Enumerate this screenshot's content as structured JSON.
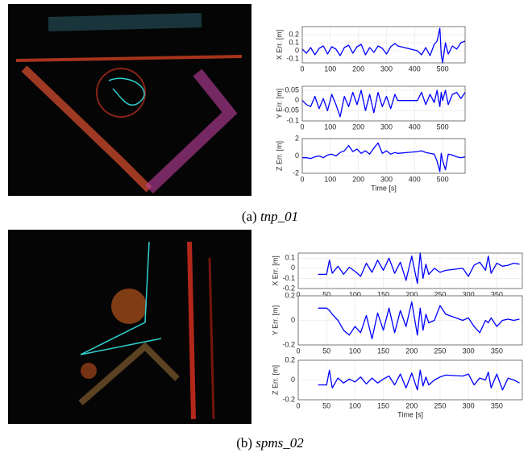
{
  "panels": [
    {
      "caption": {
        "label": "(a)",
        "name": "tnp_01"
      },
      "charts": [
        {
          "type": "line",
          "ylabel": "X Err. [m]",
          "color": "#0000ff",
          "grid": true,
          "xlim": [
            0,
            580
          ],
          "xticks": [
            0,
            100,
            200,
            300,
            400,
            500
          ],
          "ylim": [
            -0.15,
            0.3
          ],
          "yticks": [
            -0.1,
            0,
            0.1,
            0.2
          ],
          "x": [
            0,
            15,
            30,
            45,
            60,
            75,
            90,
            105,
            120,
            135,
            150,
            165,
            180,
            195,
            210,
            225,
            240,
            255,
            270,
            285,
            300,
            315,
            330,
            340,
            410,
            425,
            440,
            455,
            470,
            480,
            490,
            495,
            500,
            510,
            520,
            535,
            550,
            565,
            580
          ],
          "values": [
            0.02,
            -0.03,
            0.04,
            -0.05,
            0.03,
            0.06,
            -0.04,
            0.05,
            0.02,
            -0.06,
            0.04,
            0.07,
            -0.03,
            0.05,
            0.08,
            -0.05,
            0.04,
            -0.02,
            0.06,
            0.03,
            -0.04,
            0.05,
            0.09,
            0.06,
            0.0,
            -0.05,
            0.04,
            -0.06,
            0.08,
            0.12,
            0.28,
            -0.05,
            -0.15,
            0.1,
            -0.04,
            0.06,
            0.02,
            0.1,
            0.12
          ]
        },
        {
          "type": "line",
          "ylabel": "Y Err. [m]",
          "color": "#0000ff",
          "grid": true,
          "xlim": [
            0,
            580
          ],
          "xticks": [
            0,
            100,
            200,
            300,
            400,
            500
          ],
          "ylim": [
            -0.1,
            0.07
          ],
          "yticks": [
            -0.1,
            -0.05,
            0,
            0.05
          ],
          "x": [
            0,
            15,
            30,
            45,
            60,
            75,
            90,
            105,
            120,
            135,
            150,
            165,
            180,
            195,
            210,
            225,
            240,
            255,
            270,
            285,
            300,
            315,
            330,
            340,
            410,
            425,
            440,
            455,
            470,
            480,
            490,
            495,
            500,
            510,
            520,
            535,
            550,
            565,
            580
          ],
          "values": [
            0,
            -0.02,
            -0.03,
            0.02,
            -0.04,
            0.01,
            -0.05,
            0.03,
            -0.02,
            -0.08,
            0.02,
            -0.03,
            0.04,
            -0.02,
            0.05,
            -0.05,
            0.03,
            -0.06,
            0.04,
            -0.03,
            0.02,
            -0.04,
            0.03,
            0.0,
            0.0,
            0.04,
            -0.02,
            0.03,
            -0.01,
            0.05,
            -0.03,
            0.04,
            0.0,
            0.05,
            -0.02,
            0.03,
            0.04,
            0.01,
            0.04
          ]
        },
        {
          "type": "line",
          "ylabel": "Z Err. [m]",
          "xlabel": "Time [s]",
          "color": "#0000ff",
          "grid": true,
          "xlim": [
            0,
            580
          ],
          "xticks": [
            0,
            100,
            200,
            300,
            400,
            500
          ],
          "ylim": [
            -2,
            2
          ],
          "yticks": [
            -2,
            0,
            2
          ],
          "x": [
            0,
            15,
            30,
            45,
            60,
            75,
            90,
            105,
            120,
            135,
            150,
            165,
            180,
            195,
            210,
            225,
            240,
            255,
            270,
            285,
            300,
            315,
            330,
            340,
            410,
            425,
            440,
            455,
            470,
            480,
            490,
            495,
            500,
            510,
            520,
            535,
            550,
            565,
            580
          ],
          "values": [
            -0.2,
            -0.2,
            -0.3,
            -0.1,
            0,
            -0.2,
            0.1,
            0.2,
            0.0,
            0.4,
            0.6,
            1.2,
            0.5,
            0.8,
            0.3,
            0.6,
            0.2,
            0.9,
            1.5,
            0.3,
            0.6,
            0.2,
            0.4,
            0.3,
            0.5,
            0.6,
            0.4,
            0.3,
            0.2,
            -0.6,
            -1.8,
            0.3,
            -0.5,
            -1.6,
            0.2,
            0.1,
            -0.1,
            -0.2,
            -0.1
          ]
        }
      ]
    },
    {
      "caption": {
        "label": "(b)",
        "name": "spms_02"
      },
      "charts": [
        {
          "type": "line",
          "ylabel": "X Err. [m]",
          "color": "#0000ff",
          "grid": true,
          "xlim": [
            0,
            395
          ],
          "xticks": [
            0,
            50,
            100,
            150,
            200,
            250,
            300,
            350
          ],
          "ylim": [
            -0.2,
            0.15
          ],
          "yticks": [
            -0.2,
            -0.1,
            0,
            0.1
          ],
          "x": [
            35,
            50,
            55,
            60,
            70,
            80,
            90,
            100,
            110,
            120,
            130,
            140,
            150,
            160,
            170,
            180,
            190,
            200,
            210,
            215,
            220,
            225,
            230,
            240,
            250,
            260,
            290,
            300,
            310,
            320,
            330,
            335,
            340,
            350,
            360,
            370,
            380,
            390
          ],
          "values": [
            -0.06,
            -0.06,
            0.08,
            -0.05,
            0.02,
            -0.06,
            0.01,
            -0.03,
            -0.08,
            0.05,
            -0.04,
            0.08,
            -0.02,
            0.1,
            -0.05,
            0.06,
            -0.12,
            0.12,
            -0.15,
            0.15,
            -0.1,
            0.04,
            -0.06,
            0.0,
            -0.04,
            -0.02,
            0.0,
            -0.08,
            0.03,
            0.06,
            -0.02,
            0.12,
            -0.05,
            0.05,
            0.02,
            0.03,
            0.05,
            0.04
          ]
        },
        {
          "type": "line",
          "ylabel": "Y Err. [m]",
          "color": "#0000ff",
          "grid": true,
          "xlim": [
            0,
            395
          ],
          "xticks": [
            0,
            50,
            100,
            150,
            200,
            250,
            300,
            350
          ],
          "ylim": [
            -0.2,
            0.2
          ],
          "yticks": [
            -0.2,
            0,
            0.2
          ],
          "x": [
            35,
            50,
            55,
            60,
            70,
            80,
            90,
            100,
            110,
            120,
            130,
            140,
            150,
            160,
            170,
            180,
            190,
            200,
            210,
            215,
            220,
            225,
            230,
            240,
            250,
            260,
            290,
            300,
            310,
            320,
            330,
            335,
            340,
            350,
            360,
            370,
            380,
            390
          ],
          "values": [
            0.1,
            0.1,
            0.08,
            0.05,
            0.0,
            -0.08,
            -0.12,
            -0.05,
            -0.1,
            0.04,
            -0.15,
            0.06,
            -0.08,
            0.1,
            -0.1,
            0.08,
            -0.05,
            0.15,
            -0.12,
            0.1,
            -0.08,
            0.05,
            -0.02,
            0.0,
            0.12,
            0.05,
            0.0,
            0.02,
            -0.05,
            -0.1,
            0.0,
            -0.02,
            0.02,
            -0.05,
            0.0,
            0.01,
            0.0,
            0.01
          ]
        },
        {
          "type": "line",
          "ylabel": "Z Err. [m]",
          "xlabel": "Time [s]",
          "color": "#0000ff",
          "grid": true,
          "xlim": [
            0,
            395
          ],
          "xticks": [
            0,
            50,
            100,
            150,
            200,
            250,
            300,
            350
          ],
          "ylim": [
            -0.2,
            0.2
          ],
          "yticks": [
            -0.2,
            0,
            0.2
          ],
          "x": [
            35,
            50,
            55,
            60,
            70,
            80,
            90,
            100,
            110,
            120,
            130,
            140,
            150,
            160,
            170,
            180,
            190,
            200,
            210,
            215,
            220,
            225,
            230,
            240,
            250,
            260,
            290,
            300,
            310,
            320,
            330,
            335,
            340,
            350,
            360,
            370,
            380,
            390
          ],
          "values": [
            -0.05,
            -0.05,
            0.1,
            -0.08,
            0.02,
            -0.03,
            0.01,
            -0.02,
            0.03,
            -0.04,
            0.02,
            -0.03,
            0.01,
            0.04,
            -0.05,
            0.06,
            -0.08,
            0.07,
            -0.1,
            0.1,
            -0.06,
            0.03,
            -0.05,
            0.0,
            0.03,
            0.05,
            0.04,
            0.06,
            -0.05,
            0.02,
            0.0,
            0.08,
            -0.08,
            0.06,
            -0.1,
            0.02,
            0.0,
            -0.03
          ]
        }
      ]
    }
  ]
}
